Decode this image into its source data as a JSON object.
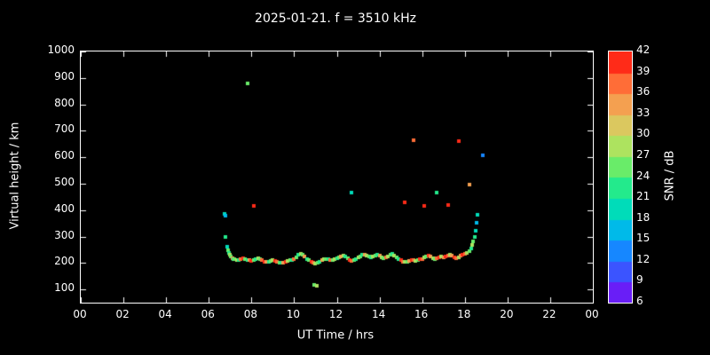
{
  "chart_data": {
    "type": "scatter",
    "title": "2025-01-21. f = 3510 kHz",
    "xlabel": "UT Time / hrs",
    "ylabel": "Virtual height / km",
    "xlim": [
      0,
      24
    ],
    "ylim": [
      50,
      1000
    ],
    "x_tick_values": [
      0,
      2,
      4,
      6,
      8,
      10,
      12,
      14,
      16,
      18,
      20,
      22,
      24
    ],
    "x_tick_labels": [
      "00",
      "02",
      "04",
      "06",
      "08",
      "10",
      "12",
      "14",
      "16",
      "18",
      "20",
      "22",
      "00"
    ],
    "y_tick_values": [
      100,
      200,
      300,
      400,
      500,
      600,
      700,
      800,
      900,
      1000
    ],
    "grid": false,
    "background": "#000000",
    "frame_color": "#ffffff",
    "legend_position": "right-colorbar",
    "colorbar": {
      "label": "SNR / dB",
      "min": 6,
      "max": 42,
      "step": 3,
      "tick_values": [
        6,
        9,
        12,
        15,
        18,
        21,
        24,
        27,
        30,
        33,
        36,
        39,
        42
      ],
      "stops": [
        {
          "v": 6,
          "c": "#8800ee"
        },
        {
          "v": 9,
          "c": "#4a3cff"
        },
        {
          "v": 12,
          "c": "#2b6cff"
        },
        {
          "v": 15,
          "c": "#00a2ff"
        },
        {
          "v": 18,
          "c": "#00d2d2"
        },
        {
          "v": 21,
          "c": "#00e6a0"
        },
        {
          "v": 24,
          "c": "#46ee78"
        },
        {
          "v": 27,
          "c": "#8cea5a"
        },
        {
          "v": 30,
          "c": "#cddc64"
        },
        {
          "v": 33,
          "c": "#e9b45a"
        },
        {
          "v": 36,
          "c": "#ff8c46"
        },
        {
          "v": 39,
          "c": "#ff4e28"
        },
        {
          "v": 42,
          "c": "#ff0808"
        }
      ]
    },
    "series": [
      {
        "name": "ionosonde-echoes",
        "point_format": "[ut_hours, virtual_height_km, snr_db]",
        "points": [
          [
            6.72,
            385,
            18
          ],
          [
            6.78,
            378,
            15
          ],
          [
            6.8,
            300,
            21
          ],
          [
            6.85,
            262,
            18
          ],
          [
            6.9,
            248,
            24
          ],
          [
            6.95,
            238,
            21
          ],
          [
            7.0,
            230,
            27
          ],
          [
            7.05,
            224,
            24
          ],
          [
            7.1,
            219,
            33
          ],
          [
            7.15,
            216,
            21
          ],
          [
            7.2,
            213,
            24
          ],
          [
            7.3,
            210,
            27
          ],
          [
            7.4,
            212,
            21
          ],
          [
            7.5,
            215,
            36
          ],
          [
            7.6,
            218,
            39
          ],
          [
            7.7,
            215,
            24
          ],
          [
            7.8,
            212,
            21
          ],
          [
            7.9,
            210,
            33
          ],
          [
            8.0,
            208,
            39
          ],
          [
            8.1,
            210,
            24
          ],
          [
            8.2,
            214,
            21
          ],
          [
            8.3,
            218,
            27
          ],
          [
            8.4,
            215,
            24
          ],
          [
            8.5,
            210,
            36
          ],
          [
            8.6,
            206,
            39
          ],
          [
            8.7,
            203,
            33
          ],
          [
            8.8,
            205,
            21
          ],
          [
            8.9,
            208,
            24
          ],
          [
            9.0,
            210,
            27
          ],
          [
            9.1,
            208,
            39
          ],
          [
            9.2,
            205,
            36
          ],
          [
            9.3,
            202,
            24
          ],
          [
            9.4,
            200,
            21
          ],
          [
            9.5,
            202,
            33
          ],
          [
            9.6,
            205,
            39
          ],
          [
            9.7,
            208,
            27
          ],
          [
            9.8,
            210,
            24
          ],
          [
            9.9,
            212,
            21
          ],
          [
            10.0,
            216,
            36
          ],
          [
            10.1,
            222,
            24
          ],
          [
            10.2,
            230,
            21
          ],
          [
            10.3,
            236,
            27
          ],
          [
            10.4,
            230,
            24
          ],
          [
            10.5,
            223,
            33
          ],
          [
            10.6,
            216,
            21
          ],
          [
            10.7,
            210,
            24
          ],
          [
            10.8,
            205,
            39
          ],
          [
            10.9,
            200,
            36
          ],
          [
            11.0,
            198,
            27
          ],
          [
            11.1,
            200,
            24
          ],
          [
            11.2,
            205,
            21
          ],
          [
            11.3,
            210,
            33
          ],
          [
            11.4,
            213,
            27
          ],
          [
            11.5,
            215,
            24
          ],
          [
            11.6,
            213,
            21
          ],
          [
            11.7,
            210,
            36
          ],
          [
            11.8,
            212,
            24
          ],
          [
            11.9,
            215,
            27
          ],
          [
            12.0,
            218,
            21
          ],
          [
            12.1,
            222,
            24
          ],
          [
            12.2,
            226,
            33
          ],
          [
            12.3,
            228,
            27
          ],
          [
            12.4,
            224,
            21
          ],
          [
            12.5,
            218,
            24
          ],
          [
            12.6,
            212,
            39
          ],
          [
            12.7,
            208,
            36
          ],
          [
            12.8,
            210,
            24
          ],
          [
            12.9,
            214,
            21
          ],
          [
            13.0,
            220,
            27
          ],
          [
            13.1,
            226,
            24
          ],
          [
            13.2,
            230,
            21
          ],
          [
            13.3,
            232,
            33
          ],
          [
            13.4,
            228,
            27
          ],
          [
            13.5,
            224,
            24
          ],
          [
            13.6,
            220,
            21
          ],
          [
            13.7,
            224,
            27
          ],
          [
            13.8,
            228,
            24
          ],
          [
            13.9,
            232,
            21
          ],
          [
            14.0,
            228,
            33
          ],
          [
            14.1,
            222,
            27
          ],
          [
            14.2,
            218,
            24
          ],
          [
            14.3,
            222,
            36
          ],
          [
            14.4,
            226,
            27
          ],
          [
            14.5,
            230,
            24
          ],
          [
            14.6,
            233,
            21
          ],
          [
            14.7,
            228,
            27
          ],
          [
            14.8,
            222,
            24
          ],
          [
            14.9,
            216,
            21
          ],
          [
            15.0,
            210,
            39
          ],
          [
            15.1,
            206,
            36
          ],
          [
            15.2,
            203,
            27
          ],
          [
            15.3,
            205,
            24
          ],
          [
            15.4,
            208,
            33
          ],
          [
            15.5,
            212,
            39
          ],
          [
            15.6,
            210,
            36
          ],
          [
            15.7,
            207,
            27
          ],
          [
            15.8,
            210,
            24
          ],
          [
            15.9,
            213,
            39
          ],
          [
            16.0,
            216,
            36
          ],
          [
            16.1,
            220,
            27
          ],
          [
            16.2,
            224,
            24
          ],
          [
            16.3,
            227,
            39
          ],
          [
            16.4,
            223,
            33
          ],
          [
            16.5,
            218,
            27
          ],
          [
            16.6,
            214,
            24
          ],
          [
            16.7,
            217,
            36
          ],
          [
            16.8,
            221,
            39
          ],
          [
            16.9,
            224,
            27
          ],
          [
            17.0,
            220,
            33
          ],
          [
            17.1,
            224,
            39
          ],
          [
            17.2,
            228,
            36
          ],
          [
            17.3,
            231,
            27
          ],
          [
            17.4,
            227,
            33
          ],
          [
            17.5,
            222,
            39
          ],
          [
            17.6,
            218,
            36
          ],
          [
            17.7,
            222,
            27
          ],
          [
            17.8,
            227,
            33
          ],
          [
            17.9,
            231,
            39
          ],
          [
            18.0,
            234,
            36
          ],
          [
            18.1,
            238,
            27
          ],
          [
            18.2,
            246,
            24
          ],
          [
            18.3,
            256,
            21
          ],
          [
            18.35,
            268,
            27
          ],
          [
            18.4,
            282,
            24
          ],
          [
            18.45,
            300,
            21
          ],
          [
            18.5,
            322,
            18
          ],
          [
            18.55,
            352,
            15
          ],
          [
            18.6,
            382,
            18
          ],
          [
            7.8,
            880,
            24
          ],
          [
            8.1,
            415,
            42
          ],
          [
            10.95,
            118,
            24
          ],
          [
            11.05,
            115,
            27
          ],
          [
            12.7,
            465,
            18
          ],
          [
            15.2,
            430,
            42
          ],
          [
            15.6,
            665,
            36
          ],
          [
            16.1,
            415,
            42
          ],
          [
            16.7,
            465,
            21
          ],
          [
            17.2,
            418,
            42
          ],
          [
            17.7,
            660,
            39
          ],
          [
            18.2,
            495,
            33
          ],
          [
            18.85,
            608,
            12
          ]
        ]
      }
    ]
  }
}
